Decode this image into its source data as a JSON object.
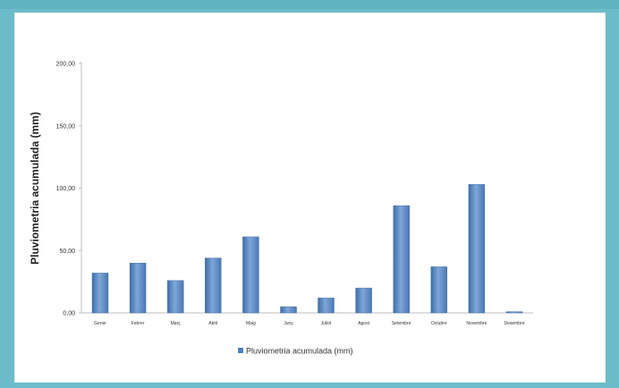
{
  "header": {
    "title": ""
  },
  "chart_data": {
    "type": "bar",
    "title": "",
    "xlabel": "",
    "ylabel": "Pluviometria acumulada (mm)",
    "ylim": [
      0,
      200
    ],
    "yticks": [
      "0,00",
      "50,00",
      "100,00",
      "150,00",
      "200,00"
    ],
    "grid": false,
    "legend": "bottom",
    "categories": [
      "Gener",
      "Febrer",
      "Març",
      "Abril",
      "Maig",
      "Juny",
      "Juliol",
      "Agost",
      "Setembre",
      "Octubre",
      "Novembre",
      "Desembre"
    ],
    "series": [
      {
        "name": "Pluviometria acumulada (mm)",
        "color": "#4f81bd",
        "values": [
          32,
          40,
          26,
          44,
          61,
          5,
          12,
          20,
          86,
          37,
          103,
          1
        ]
      }
    ]
  }
}
